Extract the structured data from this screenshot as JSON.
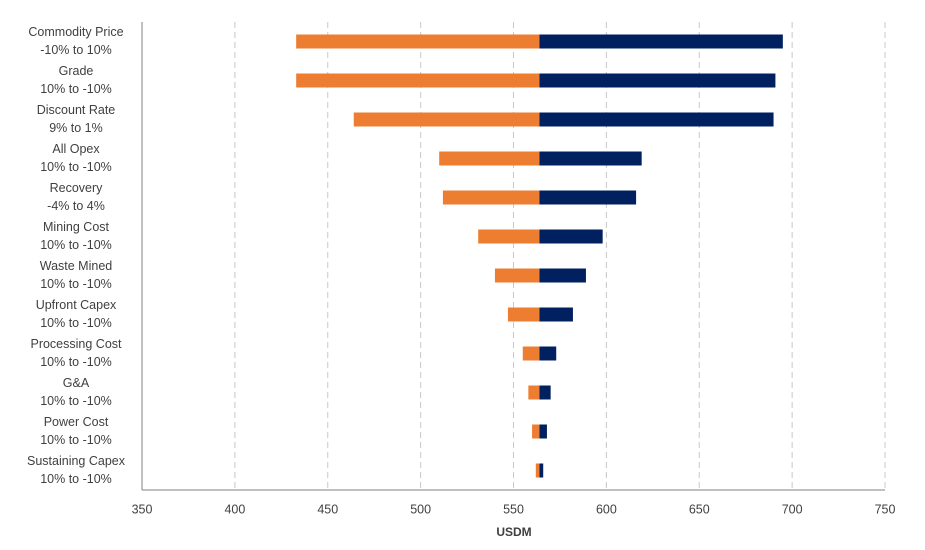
{
  "chart_data": {
    "type": "tornado",
    "categories": [
      "Commodity Price",
      "Grade",
      "Discount Rate",
      "All Opex",
      "Recovery",
      "Mining Cost",
      "Waste Mined",
      "Upfront Capex",
      "Processing Cost",
      "G&A",
      "Power Cost",
      "Sustaining Capex"
    ],
    "ranges": [
      "-10% to 10%",
      "10% to -10%",
      "9% to 1%",
      "10% to -10%",
      "-4% to 4%",
      "10% to -10%",
      "10% to -10%",
      "10% to -10%",
      "10% to -10%",
      "10% to -10%",
      "10% to -10%",
      "10% to -10%"
    ],
    "base": 564,
    "series": [
      {
        "color": "#ED7D31",
        "values": [
          433,
          433,
          464,
          510,
          512,
          531,
          540,
          547,
          555,
          558,
          560,
          562
        ]
      },
      {
        "color": "#002060",
        "values": [
          695,
          691,
          690,
          619,
          616,
          598,
          589,
          582,
          573,
          570,
          568,
          566
        ]
      }
    ],
    "xlabel": "USDM",
    "xlim": [
      350,
      750
    ],
    "xticks": [
      350,
      400,
      450,
      500,
      550,
      600,
      650,
      700,
      750
    ],
    "grid": true
  }
}
